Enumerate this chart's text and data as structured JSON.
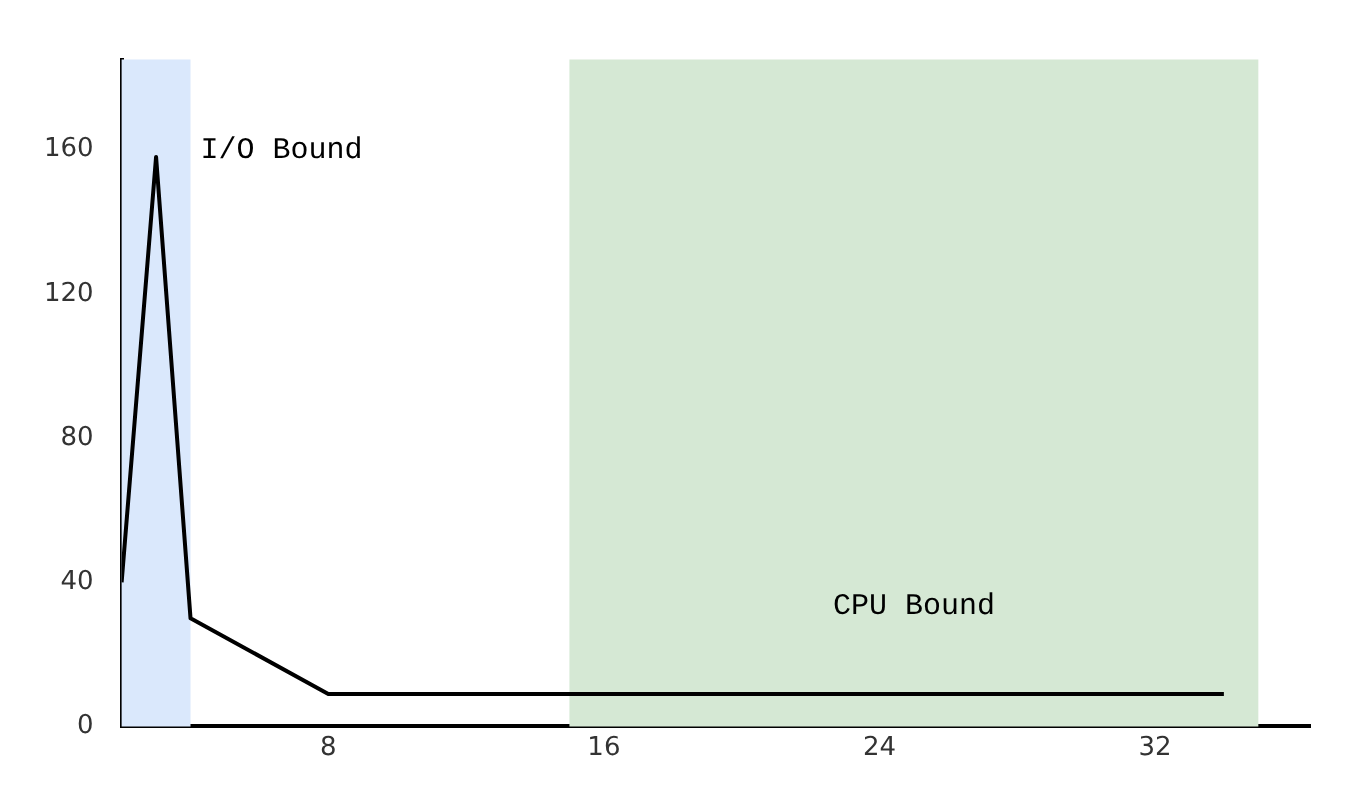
{
  "chart_data": {
    "type": "line",
    "x": [
      2,
      3,
      4,
      8,
      34
    ],
    "series": [
      {
        "color": "#000000",
        "values": [
          40,
          158,
          30,
          9,
          9
        ]
      }
    ],
    "xlim": [
      2,
      36.5
    ],
    "ylim": [
      0,
      185
    ],
    "xticks": [
      8,
      16,
      24,
      32
    ],
    "yticks": [
      0,
      40,
      80,
      120,
      160
    ],
    "grid": false,
    "legend": false,
    "marker": "none",
    "line_style": "solid",
    "bands": [
      {
        "axis": "x",
        "from": 2,
        "to": 4,
        "label": "I/O Bound",
        "color": "#dae8fc"
      },
      {
        "axis": "x",
        "from": 15,
        "to": 35,
        "label": "CPU Bound",
        "color": "#d5e8d4"
      }
    ]
  }
}
